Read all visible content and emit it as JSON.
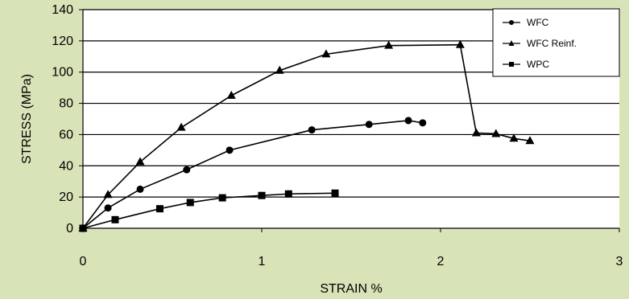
{
  "chart_data": {
    "type": "line",
    "title": "",
    "xlabel": "STRAIN %",
    "ylabel": "STRESS (MPa)",
    "xlim": [
      0,
      3
    ],
    "ylim": [
      0,
      140
    ],
    "xticks": [
      "0",
      "1",
      "2",
      "3"
    ],
    "yticks": [
      "0",
      "20",
      "40",
      "60",
      "80",
      "100",
      "120",
      "140"
    ],
    "grid": "horizontal",
    "legend_position": "top-right",
    "series": [
      {
        "name": "WFC",
        "marker": "circle",
        "color": "#000000",
        "points": [
          [
            0,
            0
          ],
          [
            0.14,
            13
          ],
          [
            0.32,
            25
          ],
          [
            0.58,
            37.5
          ],
          [
            0.82,
            50
          ],
          [
            1.28,
            63
          ],
          [
            1.6,
            66.5
          ],
          [
            1.82,
            69
          ],
          [
            1.9,
            67.5
          ]
        ]
      },
      {
        "name": "WFC Reinf.",
        "marker": "triangle",
        "color": "#000000",
        "points": [
          [
            0,
            0
          ],
          [
            0.14,
            21.5
          ],
          [
            0.32,
            42.5
          ],
          [
            0.55,
            64.5
          ],
          [
            0.83,
            85
          ],
          [
            1.1,
            101
          ],
          [
            1.36,
            111.5
          ],
          [
            1.71,
            117
          ],
          [
            2.11,
            117.5
          ],
          [
            2.2,
            61
          ],
          [
            2.31,
            60.5
          ],
          [
            2.41,
            57.5
          ],
          [
            2.5,
            56
          ]
        ]
      },
      {
        "name": "WPC",
        "marker": "square",
        "color": "#000000",
        "points": [
          [
            0,
            0
          ],
          [
            0.18,
            5.5
          ],
          [
            0.43,
            12.5
          ],
          [
            0.6,
            16.5
          ],
          [
            0.78,
            19.5
          ],
          [
            1.0,
            21
          ],
          [
            1.15,
            22
          ],
          [
            1.41,
            22.5
          ]
        ]
      }
    ]
  }
}
